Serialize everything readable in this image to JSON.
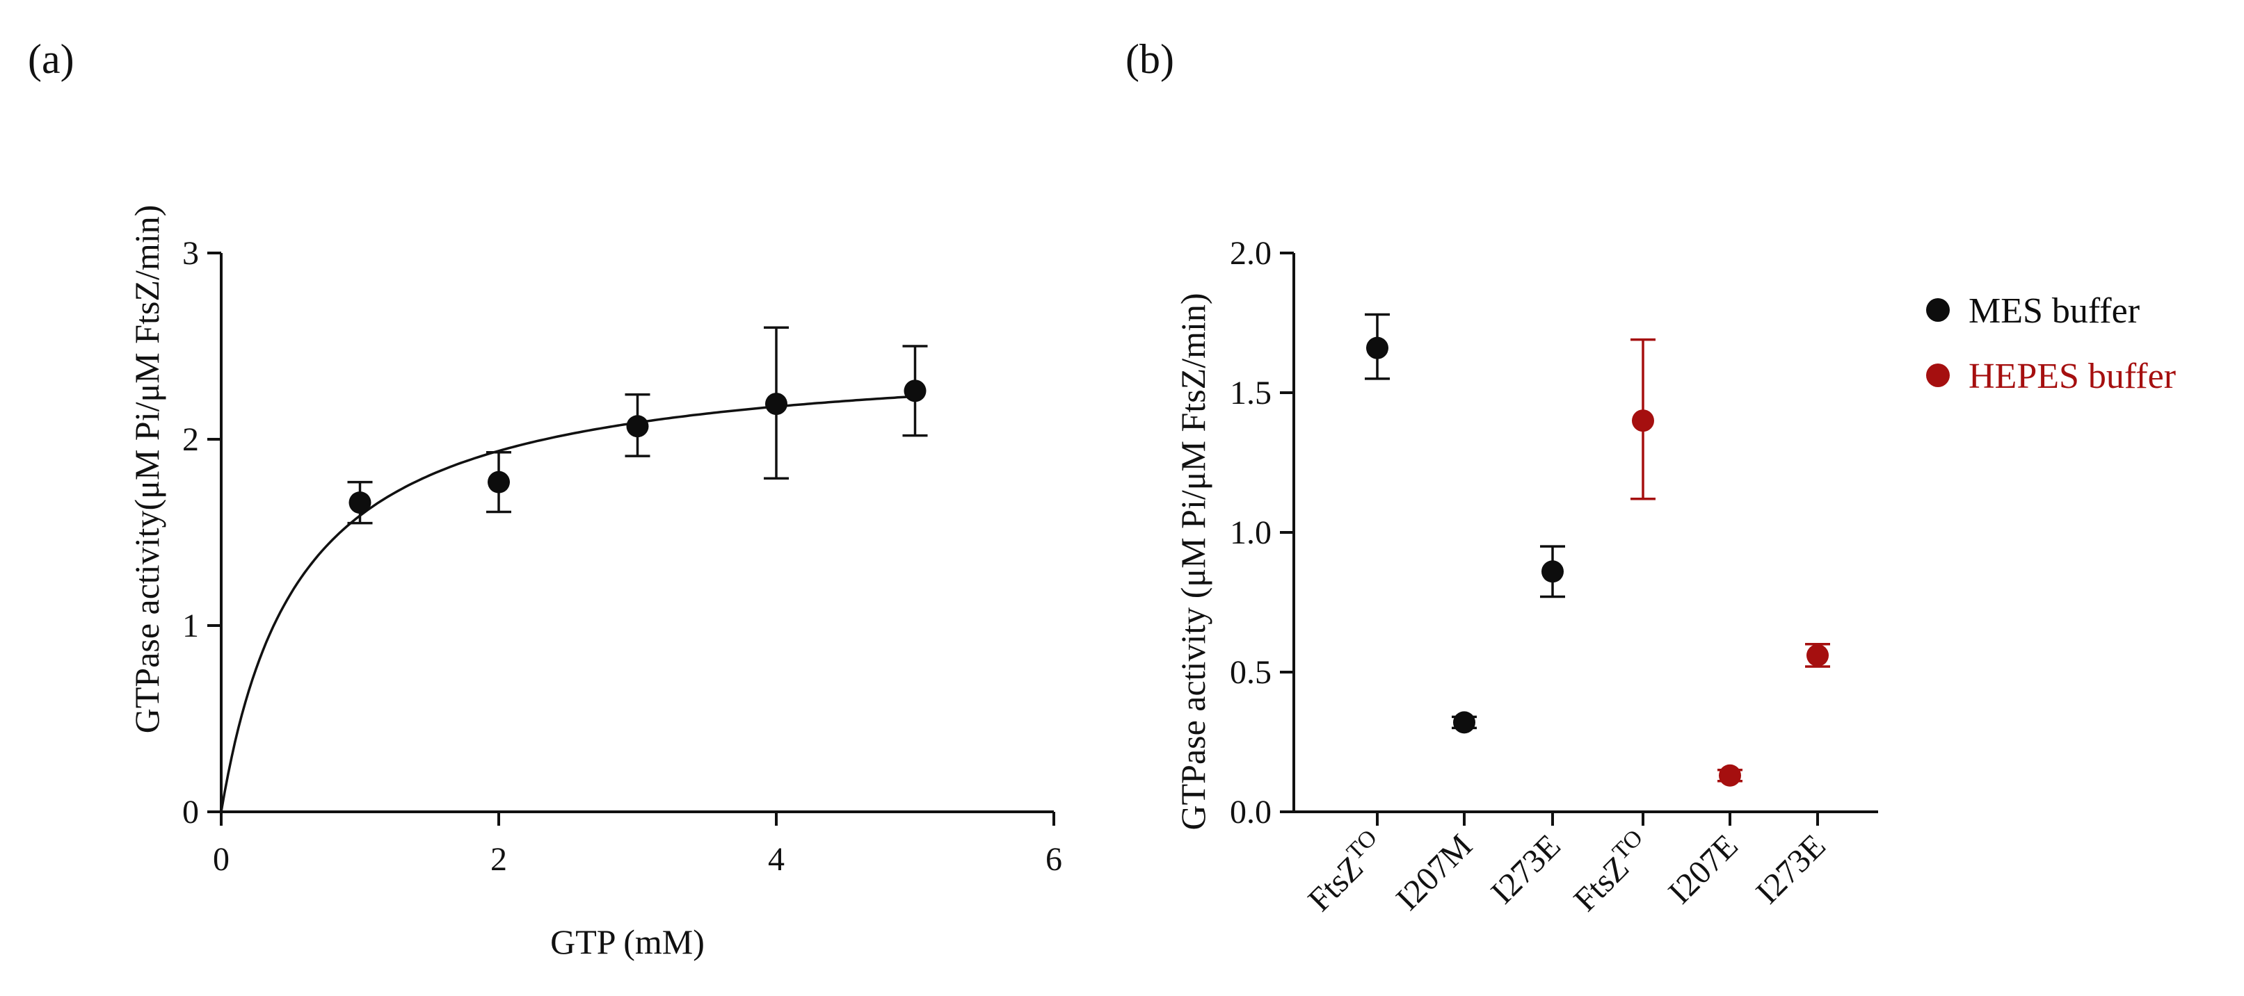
{
  "panel_labels": {
    "a": "(a)",
    "b": "(b)"
  },
  "colors": {
    "mes": "#0d0d0d",
    "hepes": "#a50f0f",
    "axis": "#111111"
  },
  "chart_data": [
    {
      "id": "a",
      "type": "scatter",
      "title": "",
      "xlabel": "GTP (mM)",
      "ylabel": "GTPase activity(μM Pi/μM FtsZ/min)",
      "xlim": [
        0,
        6
      ],
      "ylim": [
        0,
        3
      ],
      "xticks": [
        "0",
        "2",
        "4",
        "6"
      ],
      "yticks": [
        "0",
        "1",
        "2",
        "3"
      ],
      "grid": false,
      "series": [
        {
          "name": "GTPase activity",
          "x": [
            1,
            2,
            3,
            4,
            5
          ],
          "y": [
            1.66,
            1.77,
            2.07,
            2.19,
            2.26
          ],
          "err_low": [
            1.55,
            1.61,
            1.91,
            1.79,
            2.02
          ],
          "err_high": [
            1.77,
            1.93,
            2.24,
            2.6,
            2.5
          ]
        }
      ],
      "fit": {
        "model": "Michaelis-Menten",
        "vmax": 2.48,
        "km": 0.56
      }
    },
    {
      "id": "b",
      "type": "scatter",
      "title": "",
      "xlabel": "",
      "ylabel": "GTPase activity (μM Pi/μM FtsZ/min)",
      "ylim": [
        0,
        2.0
      ],
      "yticks": [
        "0.0",
        "0.5",
        "1.0",
        "1.5",
        "2.0"
      ],
      "grid": false,
      "legend_position": "top-right",
      "categories": [
        {
          "base": "FtsZ",
          "sup": "TO"
        },
        {
          "base": "I207M",
          "sup": ""
        },
        {
          "base": "I273E",
          "sup": ""
        },
        {
          "base": "FtsZ",
          "sup": "TO"
        },
        {
          "base": "I207E",
          "sup": ""
        },
        {
          "base": "I273E",
          "sup": ""
        }
      ],
      "series": [
        {
          "name": "MES buffer",
          "color_key": "mes",
          "points": [
            {
              "cat": 0,
              "y": 1.66,
              "lo": 1.55,
              "hi": 1.78
            },
            {
              "cat": 1,
              "y": 0.32,
              "lo": 0.3,
              "hi": 0.34
            },
            {
              "cat": 2,
              "y": 0.86,
              "lo": 0.77,
              "hi": 0.95
            }
          ]
        },
        {
          "name": "HEPES buffer",
          "color_key": "hepes",
          "points": [
            {
              "cat": 3,
              "y": 1.4,
              "lo": 1.12,
              "hi": 1.69
            },
            {
              "cat": 4,
              "y": 0.13,
              "lo": 0.11,
              "hi": 0.15
            },
            {
              "cat": 5,
              "y": 0.56,
              "lo": 0.52,
              "hi": 0.6
            }
          ]
        }
      ]
    }
  ]
}
